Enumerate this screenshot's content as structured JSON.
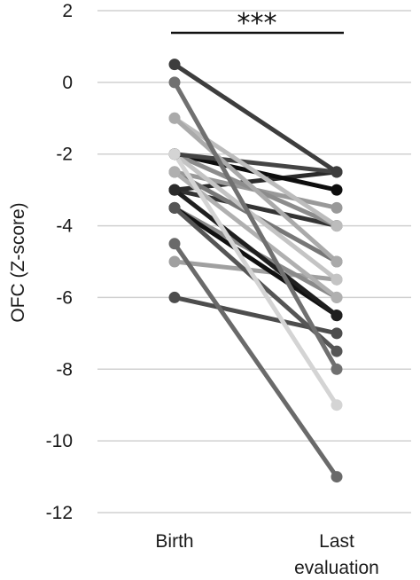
{
  "chart_data": {
    "type": "line",
    "title": "",
    "xlabel": "",
    "ylabel": "OFC (Z-score)",
    "categories": [
      [
        "Birth"
      ],
      [
        "Last",
        "evaluation"
      ]
    ],
    "ylim": [
      -12,
      2
    ],
    "yticks": [
      2,
      0,
      -2,
      -4,
      -6,
      -8,
      -10,
      -12
    ],
    "grid": "horizontal",
    "legend": "none",
    "significance": "***",
    "series": [
      {
        "values": [
          -6,
          -7
        ],
        "color": "#4d4d4d"
      },
      {
        "values": [
          -5,
          -5.5
        ],
        "color": "#a0a0a0"
      },
      {
        "values": [
          -4.5,
          -11
        ],
        "color": "#6a6a6a"
      },
      {
        "values": [
          -3.5,
          -6
        ],
        "color": "#8a8a8a"
      },
      {
        "values": [
          -3.5,
          -6.5
        ],
        "color": "#111111"
      },
      {
        "values": [
          -3.5,
          -7.5
        ],
        "color": "#555555"
      },
      {
        "values": [
          -3,
          -4
        ],
        "color": "#333333"
      },
      {
        "values": [
          -3,
          -6.5
        ],
        "color": "#1f1f1f"
      },
      {
        "values": [
          -3,
          -2.5
        ],
        "color": "#2b2b2b"
      },
      {
        "values": [
          -2.5,
          -5
        ],
        "color": "#777777"
      },
      {
        "values": [
          -2.5,
          -3.5
        ],
        "color": "#999999"
      },
      {
        "values": [
          -2.5,
          -6
        ],
        "color": "#b0b0b0"
      },
      {
        "values": [
          -2,
          -3
        ],
        "color": "#0e0e0e"
      },
      {
        "values": [
          -2,
          -4
        ],
        "color": "#8c8c8c"
      },
      {
        "values": [
          -2,
          -5.5
        ],
        "color": "#c4c4c4"
      },
      {
        "values": [
          -2,
          -2.5
        ],
        "color": "#444444"
      },
      {
        "values": [
          -2,
          -9
        ],
        "color": "#d4d4d4"
      },
      {
        "values": [
          -1,
          -4
        ],
        "color": "#bcbcbc"
      },
      {
        "values": [
          -1,
          -5
        ],
        "color": "#aaaaaa"
      },
      {
        "values": [
          0,
          -8
        ],
        "color": "#707070"
      },
      {
        "values": [
          0.5,
          -2.5
        ],
        "color": "#3d3d3d"
      }
    ]
  }
}
